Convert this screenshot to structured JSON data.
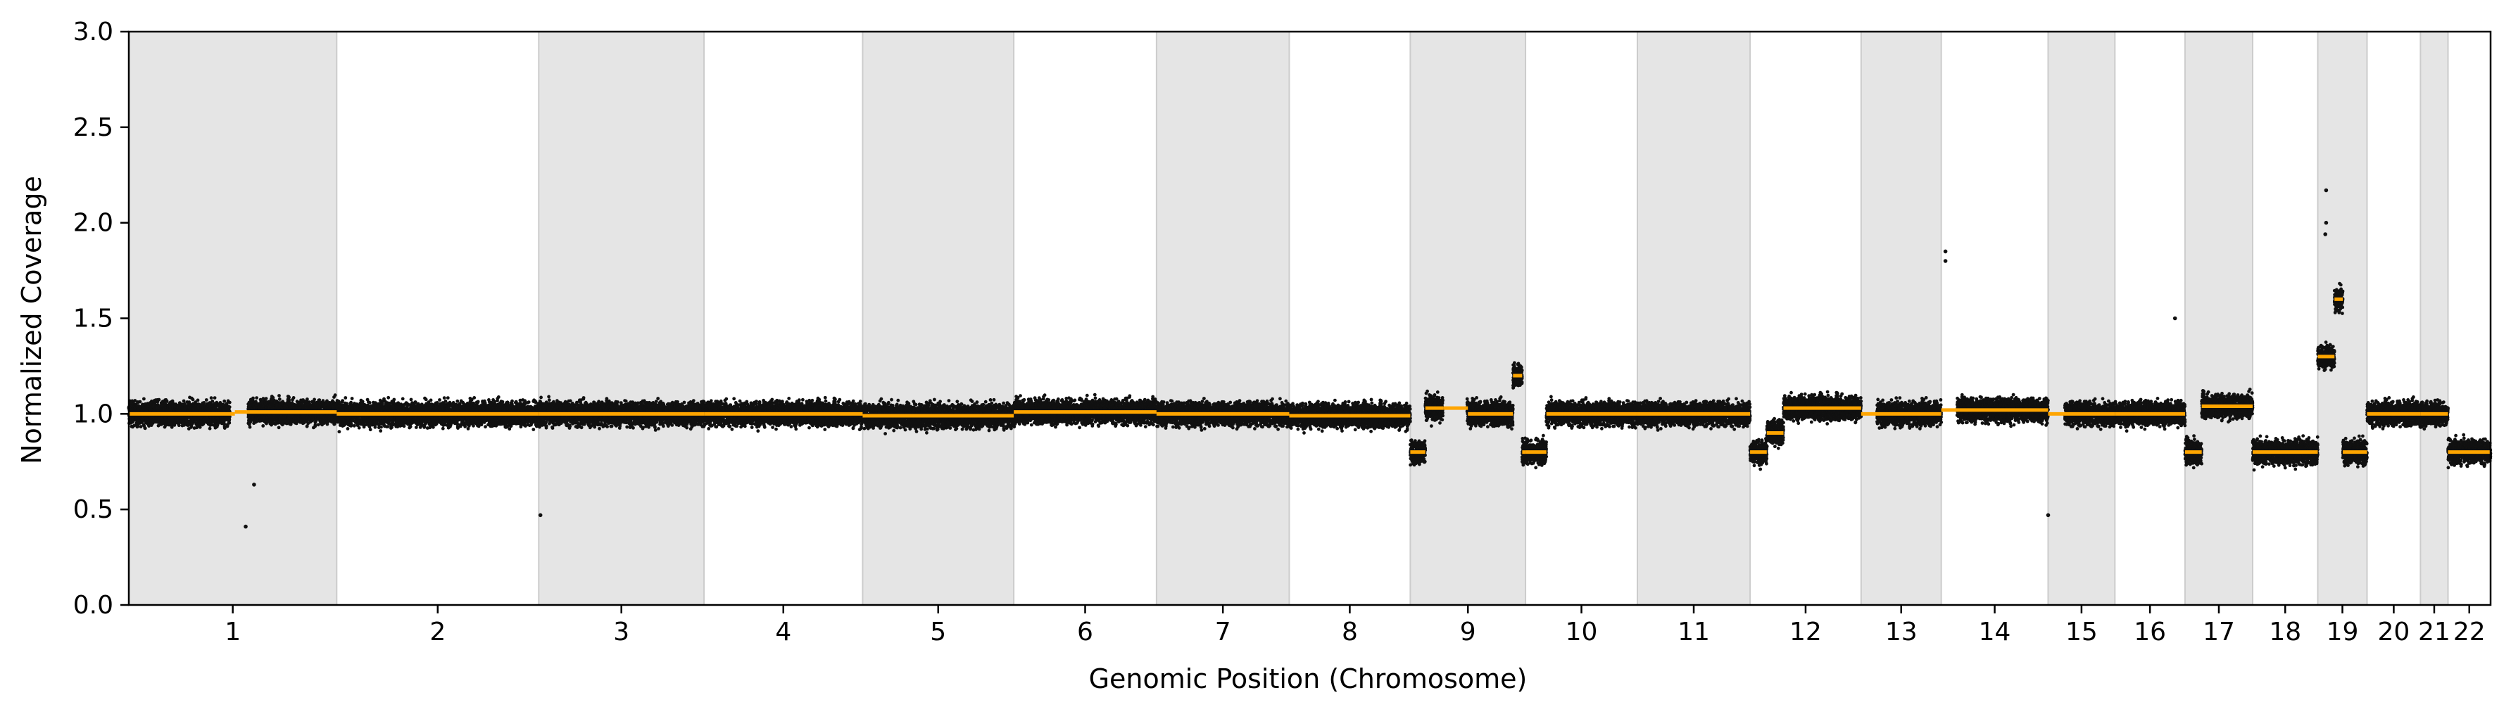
{
  "chart_data": {
    "type": "scatter",
    "title": "",
    "xlabel": "Genomic Position (Chromosome)",
    "ylabel": "Normalized Coverage",
    "ylim": [
      0.0,
      3.0
    ],
    "yticks": [
      "0.0",
      "0.5",
      "1.0",
      "1.5",
      "2.0",
      "2.5",
      "3.0"
    ],
    "grid": false,
    "legend": "none",
    "colors": {
      "points": "#111111",
      "segments": "#FFA500",
      "band": "#E5E5E5",
      "band_edge": "#CCCCCC",
      "axis": "#000000"
    },
    "chromosomes": [
      {
        "name": "1",
        "length": 249,
        "shaded": true,
        "baseline": 1.0
      },
      {
        "name": "2",
        "length": 242,
        "shaded": false,
        "baseline": 1.0
      },
      {
        "name": "3",
        "length": 198,
        "shaded": true,
        "baseline": 1.0
      },
      {
        "name": "4",
        "length": 190,
        "shaded": false,
        "baseline": 1.0
      },
      {
        "name": "5",
        "length": 181,
        "shaded": true,
        "baseline": 1.0
      },
      {
        "name": "6",
        "length": 171,
        "shaded": false,
        "baseline": 1.0
      },
      {
        "name": "7",
        "length": 159,
        "shaded": true,
        "baseline": 1.0
      },
      {
        "name": "8",
        "length": 145,
        "shaded": false,
        "baseline": 1.0
      },
      {
        "name": "9",
        "length": 138,
        "shaded": true,
        "baseline": 1.0
      },
      {
        "name": "10",
        "length": 134,
        "shaded": false,
        "baseline": 1.0
      },
      {
        "name": "11",
        "length": 135,
        "shaded": true,
        "baseline": 1.0
      },
      {
        "name": "12",
        "length": 133,
        "shaded": false,
        "baseline": 1.0
      },
      {
        "name": "13",
        "length": 96,
        "shaded": true,
        "baseline": 1.0
      },
      {
        "name": "14",
        "length": 128,
        "shaded": false,
        "baseline": 1.02
      },
      {
        "name": "15",
        "length": 80,
        "shaded": true,
        "baseline": 1.0
      },
      {
        "name": "16",
        "length": 84,
        "shaded": false,
        "baseline": 1.0
      },
      {
        "name": "17",
        "length": 81,
        "shaded": true,
        "baseline": 1.0
      },
      {
        "name": "18",
        "length": 78,
        "shaded": false,
        "baseline": 0.8
      },
      {
        "name": "19",
        "length": 59,
        "shaded": true,
        "baseline": 0.8
      },
      {
        "name": "20",
        "length": 64,
        "shaded": false,
        "baseline": 1.0
      },
      {
        "name": "21",
        "length": 33,
        "shaded": true,
        "baseline": 1.0
      },
      {
        "name": "22",
        "length": 51,
        "shaded": false,
        "baseline": 0.8
      }
    ],
    "segments": [
      {
        "chrom": "1",
        "start": 0,
        "end": 127,
        "value": 1.0
      },
      {
        "chrom": "1",
        "start": 127,
        "end": 249,
        "value": 1.01
      },
      {
        "chrom": "2",
        "start": 0,
        "end": 242,
        "value": 1.0
      },
      {
        "chrom": "3",
        "start": 0,
        "end": 198,
        "value": 1.0
      },
      {
        "chrom": "4",
        "start": 0,
        "end": 190,
        "value": 1.0
      },
      {
        "chrom": "5",
        "start": 0,
        "end": 181,
        "value": 0.99
      },
      {
        "chrom": "6",
        "start": 0,
        "end": 171,
        "value": 1.01
      },
      {
        "chrom": "7",
        "start": 0,
        "end": 159,
        "value": 1.0
      },
      {
        "chrom": "8",
        "start": 0,
        "end": 145,
        "value": 0.99
      },
      {
        "chrom": "9",
        "start": 0,
        "end": 18,
        "value": 0.8
      },
      {
        "chrom": "9",
        "start": 18,
        "end": 40,
        "value": 1.03
      },
      {
        "chrom": "9",
        "start": 40,
        "end": 69,
        "value": 1.03
      },
      {
        "chrom": "9",
        "start": 69,
        "end": 123,
        "value": 1.0
      },
      {
        "chrom": "9",
        "start": 123,
        "end": 134,
        "value": 1.2
      },
      {
        "chrom": "9",
        "start": 134,
        "end": 138,
        "value": 0.8
      },
      {
        "chrom": "10",
        "start": 0,
        "end": 25,
        "value": 0.8
      },
      {
        "chrom": "10",
        "start": 25,
        "end": 134,
        "value": 1.0
      },
      {
        "chrom": "11",
        "start": 0,
        "end": 135,
        "value": 1.0
      },
      {
        "chrom": "12",
        "start": 0,
        "end": 20,
        "value": 0.8
      },
      {
        "chrom": "12",
        "start": 20,
        "end": 40,
        "value": 0.9
      },
      {
        "chrom": "12",
        "start": 40,
        "end": 133,
        "value": 1.03
      },
      {
        "chrom": "13",
        "start": 0,
        "end": 96,
        "value": 1.0
      },
      {
        "chrom": "14",
        "start": 0,
        "end": 128,
        "value": 1.02
      },
      {
        "chrom": "15",
        "start": 0,
        "end": 80,
        "value": 1.0
      },
      {
        "chrom": "16",
        "start": 0,
        "end": 84,
        "value": 1.0
      },
      {
        "chrom": "17",
        "start": 0,
        "end": 20,
        "value": 0.8
      },
      {
        "chrom": "17",
        "start": 20,
        "end": 81,
        "value": 1.04
      },
      {
        "chrom": "18",
        "start": 0,
        "end": 78,
        "value": 0.8
      },
      {
        "chrom": "19",
        "start": 0,
        "end": 20,
        "value": 1.3
      },
      {
        "chrom": "19",
        "start": 20,
        "end": 30,
        "value": 1.6
      },
      {
        "chrom": "19",
        "start": 30,
        "end": 59,
        "value": 0.8
      },
      {
        "chrom": "20",
        "start": 0,
        "end": 64,
        "value": 1.0
      },
      {
        "chrom": "21",
        "start": 0,
        "end": 33,
        "value": 1.0
      },
      {
        "chrom": "22",
        "start": 0,
        "end": 51,
        "value": 0.8
      }
    ],
    "gaps": [
      {
        "chrom": "1",
        "start": 121,
        "end": 143
      },
      {
        "chrom": "9",
        "start": 39,
        "end": 68
      },
      {
        "chrom": "13",
        "start": 0,
        "end": 19
      },
      {
        "chrom": "14",
        "start": 0,
        "end": 19
      },
      {
        "chrom": "15",
        "start": 0,
        "end": 20
      }
    ],
    "outliers": [
      {
        "chrom": "1",
        "pos": 140,
        "value": 0.41
      },
      {
        "chrom": "1",
        "pos": 150,
        "value": 0.63
      },
      {
        "chrom": "3",
        "pos": 2,
        "value": 0.47
      },
      {
        "chrom": "14",
        "pos": 5,
        "value": 1.85
      },
      {
        "chrom": "14",
        "pos": 5,
        "value": 1.8
      },
      {
        "chrom": "15",
        "pos": 0,
        "value": 0.47
      },
      {
        "chrom": "16",
        "pos": 72,
        "value": 1.5
      },
      {
        "chrom": "19",
        "pos": 10,
        "value": 2.17
      },
      {
        "chrom": "19",
        "pos": 10,
        "value": 2.0
      },
      {
        "chrom": "19",
        "pos": 9,
        "value": 1.94
      }
    ]
  }
}
